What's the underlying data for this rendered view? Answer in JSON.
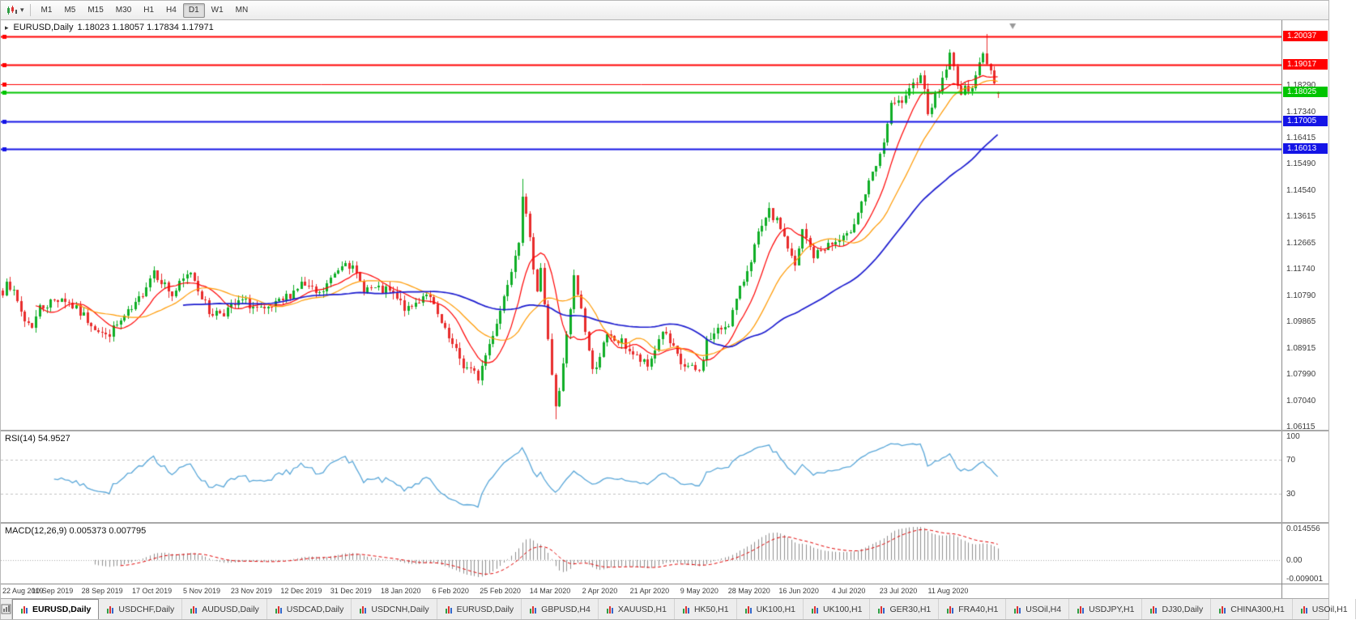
{
  "toolbar": {
    "timeframes": [
      "M1",
      "M5",
      "M15",
      "M30",
      "H1",
      "H4",
      "D1",
      "W1",
      "MN"
    ],
    "active_timeframe": "D1"
  },
  "main_chart": {
    "symbol_title": "EURUSD,Daily",
    "ohlc_text": "1.18023 1.18057 1.17834 1.17971"
  },
  "rsi_panel": {
    "label": "RSI(14) 54.9527",
    "axis_labels": [
      "100",
      "70",
      "30"
    ],
    "level_lines": [
      70,
      30
    ],
    "line_color": "#58a6d8"
  },
  "macd_panel": {
    "label": "MACD(12,26,9) 0.005373 0.007795",
    "axis_labels": [
      "0.014556",
      "0.00",
      "-0.009001"
    ],
    "histogram_color": "#8f8f8f",
    "signal_color": "#e00000"
  },
  "tab_bar": {
    "active_index": 0,
    "tabs": [
      "EURUSD,Daily",
      "USDCHF,Daily",
      "AUDUSD,Daily",
      "USDCAD,Daily",
      "USDCNH,Daily",
      "EURUSD,Daily",
      "GBPUSD,H4",
      "XAUUSD,H1",
      "HK50,H1",
      "UK100,H1",
      "UK100,H1",
      "GER30,H1",
      "FRA40,H1",
      "USOil,H4",
      "USDJPY,H1",
      "DJ30,Daily",
      "CHINA300,H1",
      "USOil,H1"
    ]
  },
  "chart_data": {
    "type": "candlestick",
    "title": "EURUSD,Daily",
    "current_candle": {
      "open": 1.18023,
      "high": 1.18057,
      "low": 1.17834,
      "close": 1.17971
    },
    "price_range": [
      1.06,
      1.206
    ],
    "y_tick_labels": [
      "1.18290",
      "1.17340",
      "1.16415",
      "1.15490",
      "1.14540",
      "1.13615",
      "1.12665",
      "1.11740",
      "1.10790",
      "1.09865",
      "1.08915",
      "1.07990",
      "1.07040",
      "1.06115"
    ],
    "x_tick_labels": [
      "22 Aug 2019",
      "10 Sep 2019",
      "28 Sep 2019",
      "17 Oct 2019",
      "5 Nov 2019",
      "23 Nov 2019",
      "12 Dec 2019",
      "31 Dec 2019",
      "18 Jan 2020",
      "6 Feb 2020",
      "25 Feb 2020",
      "14 Mar 2020",
      "2 Apr 2020",
      "21 Apr 2020",
      "9 May 2020",
      "28 May 2020",
      "16 Jun 2020",
      "4 Jul 2020",
      "23 Jul 2020",
      "11 Aug 2020"
    ],
    "label_every_candles": 13.5,
    "data_width_fraction": 0.78,
    "num_candles": 271,
    "close_path_anchors": [
      [
        0,
        1.108
      ],
      [
        1,
        1.1145
      ],
      [
        6,
        1.099
      ],
      [
        8,
        1.0972
      ],
      [
        10,
        1.1035
      ],
      [
        16,
        1.1073
      ],
      [
        21,
        1.1017
      ],
      [
        28,
        1.0932
      ],
      [
        36,
        1.104
      ],
      [
        41,
        1.117
      ],
      [
        46,
        1.108
      ],
      [
        51,
        1.1166
      ],
      [
        56,
        1.1018
      ],
      [
        60,
        1.1021
      ],
      [
        65,
        1.1059
      ],
      [
        71,
        1.1018
      ],
      [
        76,
        1.106
      ],
      [
        81,
        1.1121
      ],
      [
        86,
        1.1078
      ],
      [
        93,
        1.1212
      ],
      [
        98,
        1.1105
      ],
      [
        105,
        1.1091
      ],
      [
        110,
        1.1024
      ],
      [
        115,
        1.1093
      ],
      [
        120,
        1.0945
      ],
      [
        125,
        1.083
      ],
      [
        129,
        1.0786
      ],
      [
        135,
        1.1026
      ],
      [
        140,
        1.1284
      ],
      [
        141,
        1.1446
      ],
      [
        143,
        1.127
      ],
      [
        145,
        1.1105
      ],
      [
        146,
        1.118
      ],
      [
        148,
        1.0916
      ],
      [
        150,
        1.0688
      ],
      [
        151,
        1.0727
      ],
      [
        154,
        1.103
      ],
      [
        155,
        1.114
      ],
      [
        157,
        1.103
      ],
      [
        160,
        1.0806
      ],
      [
        164,
        1.093
      ],
      [
        168,
        1.091
      ],
      [
        172,
        1.0857
      ],
      [
        175,
        1.0823
      ],
      [
        179,
        1.0955
      ],
      [
        184,
        1.0834
      ],
      [
        189,
        1.0805
      ],
      [
        191,
        1.0915
      ],
      [
        194,
        1.095
      ],
      [
        197,
        1.0984
      ],
      [
        201,
        1.1134
      ],
      [
        205,
        1.1291
      ],
      [
        208,
        1.1373
      ],
      [
        211,
        1.1324
      ],
      [
        215,
        1.1177
      ],
      [
        217,
        1.1308
      ],
      [
        220,
        1.1219
      ],
      [
        223,
        1.1252
      ],
      [
        229,
        1.1284
      ],
      [
        233,
        1.1412
      ],
      [
        238,
        1.157
      ],
      [
        241,
        1.1752
      ],
      [
        245,
        1.1778
      ],
      [
        249,
        1.1876
      ],
      [
        251,
        1.1738
      ],
      [
        254,
        1.1813
      ],
      [
        257,
        1.1934
      ],
      [
        260,
        1.1796
      ],
      [
        263,
        1.1833
      ],
      [
        266,
        1.1935
      ],
      [
        267,
        1.1912
      ],
      [
        269,
        1.185
      ],
      [
        270,
        1.1797
      ]
    ],
    "extremes": [
      {
        "index": 141,
        "high": 1.1495
      },
      {
        "index": 150,
        "low": 1.0636
      },
      {
        "index": 267,
        "high": 1.2011
      }
    ],
    "hlines": [
      {
        "price": 1.20037,
        "label": "1.20037",
        "color": "#ff0000",
        "width": 2
      },
      {
        "price": 1.19017,
        "label": "1.19017",
        "color": "#ff0000",
        "width": 2
      },
      {
        "price": 1.1832,
        "label": "",
        "color": "#ff0000",
        "width": 1
      },
      {
        "price": 1.18025,
        "label": "1.18025",
        "color": "#00c400",
        "width": 2
      },
      {
        "price": 1.17005,
        "label": "1.17005",
        "color": "#1414e6",
        "width": 2
      },
      {
        "price": 1.16013,
        "label": "1.16013",
        "color": "#1414e6",
        "width": 2
      }
    ],
    "moving_averages": [
      {
        "period": 10,
        "color": "#ff0000",
        "width": 1.2
      },
      {
        "period": 21,
        "color": "#ff9900",
        "width": 1.2
      },
      {
        "period": 50,
        "color": "#1c1ccf",
        "width": 1.7
      }
    ],
    "up_color": "#0fae26",
    "down_color": "#e82c2c",
    "rsi": {
      "period": 14,
      "current": 54.9527,
      "range": [
        0,
        100
      ],
      "levels": [
        70,
        30
      ]
    },
    "macd": {
      "fast": 12,
      "slow": 26,
      "signal": 9,
      "current_main": 0.005373,
      "current_signal": 0.007795,
      "range": [
        -0.009001,
        0.014556
      ]
    }
  }
}
